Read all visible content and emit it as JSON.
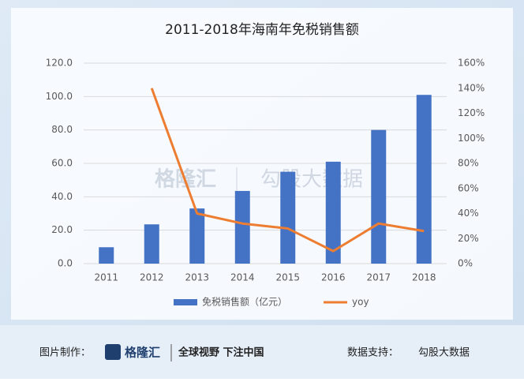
{
  "chart_data": {
    "type": "bar",
    "title": "2011-2018年海南年免税销售额",
    "categories": [
      "2011",
      "2012",
      "2013",
      "2014",
      "2015",
      "2016",
      "2017",
      "2018"
    ],
    "series": [
      {
        "name": "免税销售额（亿元）",
        "color": "#4472c4",
        "values": [
          9.8,
          23.5,
          33.0,
          43.5,
          55.0,
          61.0,
          80.0,
          101.0
        ]
      },
      {
        "name": "yoy",
        "color": "#ed7d31",
        "axis": "y2",
        "type": "line",
        "values": [
          null,
          140,
          40,
          32,
          28,
          10,
          32,
          26
        ]
      }
    ],
    "ylim": [
      0,
      120
    ],
    "yticks": [
      {
        "value": 0,
        "label": "0.0"
      },
      {
        "value": 20,
        "label": "20.0"
      },
      {
        "value": 40,
        "label": "40.0"
      },
      {
        "value": 60,
        "label": "60.0"
      },
      {
        "value": 80,
        "label": "80.0"
      },
      {
        "value": 100,
        "label": "100.0"
      },
      {
        "value": 120,
        "label": "120.0"
      }
    ],
    "y2lim": [
      0,
      160
    ],
    "y2ticks": [
      {
        "value": 0,
        "label": "0%"
      },
      {
        "value": 20,
        "label": "20%"
      },
      {
        "value": 40,
        "label": "40%"
      },
      {
        "value": 60,
        "label": "60%"
      },
      {
        "value": 80,
        "label": "80%"
      },
      {
        "value": 100,
        "label": "100%"
      },
      {
        "value": 120,
        "label": "120%"
      },
      {
        "value": 140,
        "label": "140%"
      },
      {
        "value": 160,
        "label": "160%"
      }
    ],
    "grid": true,
    "legend": "bottom"
  },
  "watermark": {
    "brand": "格隆汇",
    "partner": "勾股大数据"
  },
  "footer": {
    "made_by_label": "图片制作：",
    "brand": "格隆汇",
    "slogan": "全球视野 下注中国",
    "data_label": "数据支持：",
    "data_source": "勾股大数据"
  }
}
